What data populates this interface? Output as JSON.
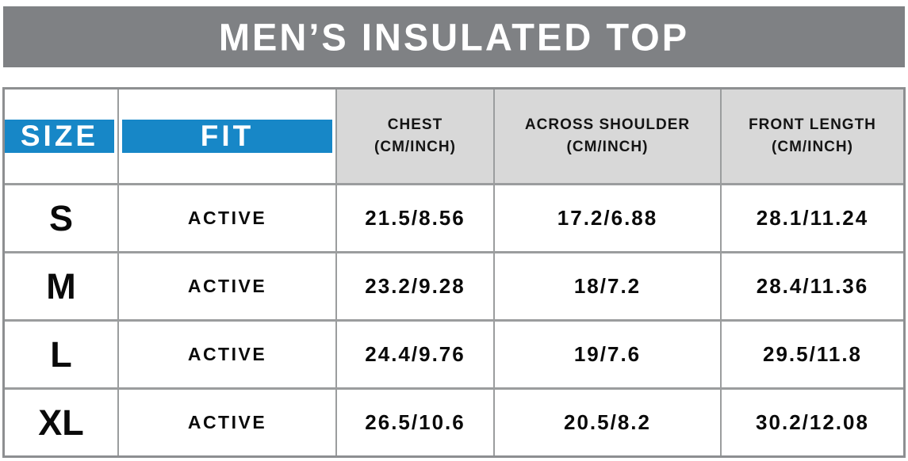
{
  "banner": {
    "title": "MEN’S INSULATED TOP"
  },
  "table": {
    "columns": [
      {
        "label": "SIZE"
      },
      {
        "label": "FIT"
      },
      {
        "label": "CHEST",
        "sub": "(CM/INCH)"
      },
      {
        "label": "ACROSS SHOULDER",
        "sub": "(CM/INCH)"
      },
      {
        "label": "FRONT LENGTH",
        "sub": "(CM/INCH)"
      }
    ],
    "rows": [
      {
        "size": "S",
        "fit": "ACTIVE",
        "chest": "21.5/8.56",
        "shoulder": "17.2/6.88",
        "front": "28.1/11.24"
      },
      {
        "size": "M",
        "fit": "ACTIVE",
        "chest": "23.2/9.28",
        "shoulder": "18/7.2",
        "front": "28.4/11.36"
      },
      {
        "size": "L",
        "fit": "ACTIVE",
        "chest": "24.4/9.76",
        "shoulder": "19/7.6",
        "front": "29.5/11.8"
      },
      {
        "size": "XL",
        "fit": "ACTIVE",
        "chest": "26.5/10.6",
        "shoulder": "20.5/8.2",
        "front": "30.2/12.08"
      }
    ]
  },
  "colors": {
    "header_blue": "#1787c7",
    "header_gray": "#d8d8d8",
    "banner_gray": "#7f8184",
    "grid_line": "#9b9d9e",
    "text_dark": "#0a0a0a",
    "text_white": "#ffffff"
  },
  "chart_data": {
    "type": "table",
    "title": "MEN’S INSULATED TOP",
    "columns": [
      "SIZE",
      "FIT",
      "CHEST (CM/INCH)",
      "ACROSS SHOULDER (CM/INCH)",
      "FRONT LENGTH (CM/INCH)"
    ],
    "rows": [
      [
        "S",
        "ACTIVE",
        "21.5/8.56",
        "17.2/6.88",
        "28.1/11.24"
      ],
      [
        "M",
        "ACTIVE",
        "23.2/9.28",
        "18/7.2",
        "28.4/11.36"
      ],
      [
        "L",
        "ACTIVE",
        "24.4/9.76",
        "19/7.6",
        "29.5/11.8"
      ],
      [
        "XL",
        "ACTIVE",
        "26.5/10.6",
        "20.5/8.2",
        "30.2/12.08"
      ]
    ],
    "units": {
      "chest": "cm/inch",
      "across_shoulder": "cm/inch",
      "front_length": "cm/inch"
    }
  }
}
